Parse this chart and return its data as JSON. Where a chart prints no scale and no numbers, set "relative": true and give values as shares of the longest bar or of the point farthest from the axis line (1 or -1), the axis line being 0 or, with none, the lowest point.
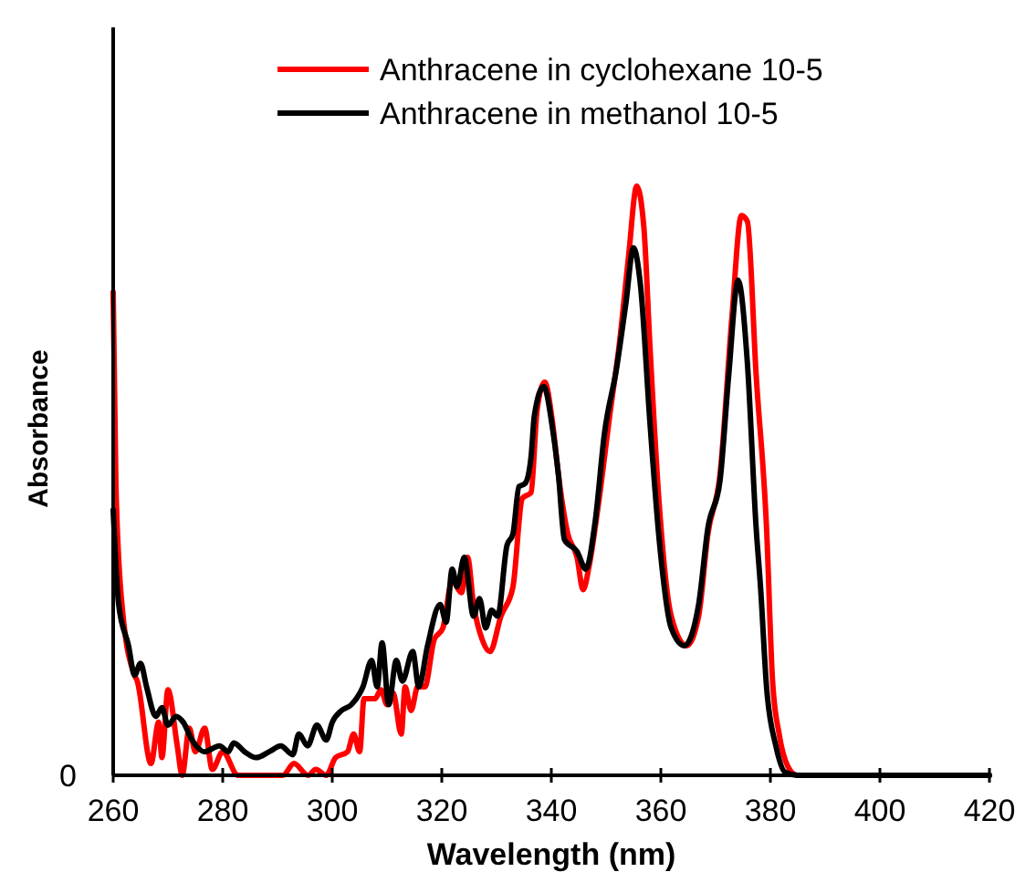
{
  "chart_data": {
    "type": "line",
    "xlabel": "Wavelength (nm)",
    "ylabel": "Absorbance",
    "relative": true,
    "xlim": [
      260,
      420
    ],
    "xticks": [
      260,
      280,
      300,
      320,
      340,
      360,
      380,
      400,
      420
    ],
    "legend": "top right",
    "grid": false,
    "marker": "none",
    "line_style": "solid",
    "annotations": [
      "0"
    ],
    "series": [
      {
        "name": "Anthracene in cyclohexane 10-5",
        "color": "#ff0000",
        "x": [
          260,
          260.5,
          261.7,
          263.9,
          264.4,
          266.9,
          268.3,
          268.9,
          270,
          271.7,
          272.6,
          273.9,
          275,
          276.7,
          278.1,
          280,
          282.8,
          285,
          288,
          291,
          293,
          295.6,
          297,
          298.9,
          300.6,
          302.8,
          303.9,
          305,
          305.8,
          307.8,
          308.9,
          310,
          311.1,
          312.6,
          313.3,
          314.4,
          315.6,
          316.9,
          318.6,
          320.2,
          321.9,
          323.6,
          324.7,
          325.8,
          327.4,
          328.8,
          330.8,
          333,
          334.7,
          336.3,
          337.4,
          338.8,
          340.2,
          341.3,
          343,
          344.7,
          345.8,
          346.9,
          348.6,
          350.8,
          352.4,
          354.1,
          355.6,
          356.9,
          358,
          359.7,
          361.9,
          364.7,
          366.9,
          368.6,
          370.8,
          373,
          374.7,
          375.8,
          377.4,
          379.3,
          380.4,
          381.6,
          383.2,
          384.9,
          386,
          420
        ],
        "values": [
          0.82,
          0.49,
          0.28,
          0.17,
          0.16,
          0.02,
          0.09,
          0.03,
          0.145,
          0.05,
          0,
          0.08,
          0.04,
          0.08,
          0.01,
          0.04,
          0,
          0,
          0,
          0,
          0.02,
          0,
          0.01,
          0,
          0.03,
          0.04,
          0.07,
          0.04,
          0.13,
          0.13,
          0.145,
          0.12,
          0.14,
          0.07,
          0.15,
          0.11,
          0.15,
          0.15,
          0.23,
          0.25,
          0.33,
          0.31,
          0.37,
          0.29,
          0.23,
          0.21,
          0.27,
          0.32,
          0.47,
          0.48,
          0.62,
          0.667,
          0.6,
          0.51,
          0.41,
          0.37,
          0.315,
          0.355,
          0.46,
          0.62,
          0.73,
          0.88,
          1,
          0.93,
          0.73,
          0.46,
          0.27,
          0.22,
          0.27,
          0.41,
          0.51,
          0.78,
          0.95,
          0.94,
          0.68,
          0.42,
          0.16,
          0.07,
          0.015,
          0,
          0,
          0
        ]
      },
      {
        "name": "Anthracene in methanol 10-5",
        "color": "#000000",
        "x": [
          260,
          261,
          262.8,
          263.9,
          265,
          266.1,
          267.8,
          268.9,
          270,
          271.5,
          272.8,
          274.4,
          276.7,
          279.4,
          281,
          282,
          284,
          286.1,
          288.5,
          290.6,
          292.8,
          293.9,
          295.5,
          297.2,
          298.9,
          300,
          301.7,
          303.5,
          305.6,
          307.2,
          308.2,
          309.1,
          310.3,
          311.7,
          312.8,
          314.7,
          315.8,
          317.4,
          319.7,
          320.8,
          321.9,
          322.8,
          324.1,
          325.8,
          326.9,
          328,
          329.1,
          330.2,
          331.9,
          333,
          334.1,
          335.2,
          336.3,
          336.9,
          338.6,
          340.2,
          341.3,
          342.4,
          344.7,
          346.3,
          348,
          349.7,
          351.9,
          353.6,
          355,
          356.3,
          358,
          359.7,
          361.9,
          364.3,
          366.9,
          368.6,
          370.8,
          372.4,
          374.1,
          375.8,
          377.4,
          378.2,
          379.3,
          381,
          382.7,
          385,
          420
        ],
        "values": [
          0.45,
          0.29,
          0.22,
          0.17,
          0.19,
          0.15,
          0.1,
          0.115,
          0.085,
          0.1,
          0.09,
          0.06,
          0.04,
          0.05,
          0.04,
          0.055,
          0.04,
          0.03,
          0.04,
          0.05,
          0.035,
          0.07,
          0.05,
          0.085,
          0.06,
          0.09,
          0.11,
          0.12,
          0.15,
          0.195,
          0.15,
          0.225,
          0.12,
          0.195,
          0.16,
          0.21,
          0.15,
          0.22,
          0.29,
          0.26,
          0.35,
          0.32,
          0.37,
          0.27,
          0.3,
          0.25,
          0.28,
          0.27,
          0.39,
          0.41,
          0.49,
          0.495,
          0.54,
          0.61,
          0.66,
          0.59,
          0.51,
          0.4,
          0.38,
          0.35,
          0.43,
          0.58,
          0.69,
          0.8,
          0.895,
          0.83,
          0.6,
          0.4,
          0.25,
          0.22,
          0.29,
          0.42,
          0.5,
          0.68,
          0.84,
          0.7,
          0.42,
          0.32,
          0.15,
          0.05,
          0.005,
          0,
          0
        ]
      }
    ]
  }
}
